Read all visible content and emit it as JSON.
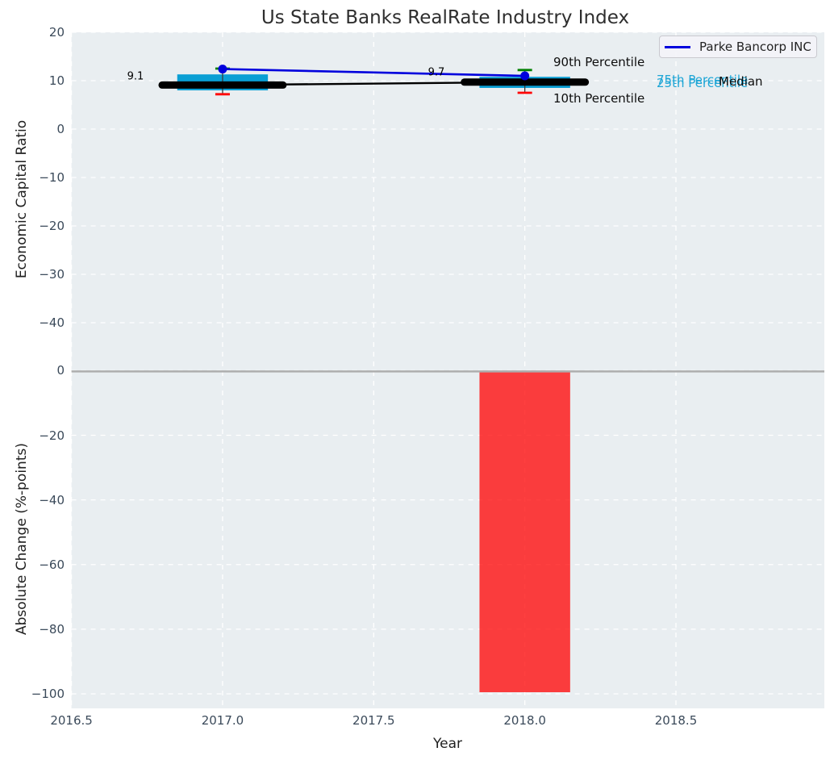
{
  "title": "Us State Banks RealRate Industry Index",
  "legend": {
    "label": "Parke Bancorp INC"
  },
  "annotations": {
    "p90": "90th Percentile",
    "p75": "75th Percentile",
    "median": "Median",
    "p25": "25th Percentile",
    "p10": "10th Percentile"
  },
  "colors": {
    "plot_bg": "#e9eef1",
    "grid": "#ffffff",
    "box": "#0a9fd4",
    "parke_line": "#0000dd",
    "median_line": "#000000",
    "cap_high": "#008000",
    "cap_low": "#ff0000",
    "whisker": "#3a3a3a",
    "bar": "#ff0000",
    "zero_line": "#aeaeae",
    "tick": "#3b4a5a",
    "cyan_label": "#1fa6d6"
  },
  "top_chart": {
    "ylabel": "Economic Capital Ratio",
    "ytick_labels": [
      "20",
      "10",
      "0",
      "−10",
      "−20",
      "−30",
      "−40"
    ],
    "yticks": [
      20,
      10,
      0,
      -10,
      -20,
      -30,
      -40
    ],
    "median_labels": [
      "9.1",
      "9.7"
    ]
  },
  "bottom_chart": {
    "ylabel": "Absolute Change (%-points)",
    "ytick_labels": [
      "0",
      "−20",
      "−40",
      "−60",
      "−80",
      "−100"
    ],
    "yticks": [
      0,
      -20,
      -40,
      -60,
      -80,
      -100
    ],
    "xlabel": "Year",
    "xtick_labels": [
      "2016.5",
      "2017.0",
      "2017.5",
      "2018.0",
      "2018.5"
    ],
    "xticks": [
      2016.5,
      2017.0,
      2017.5,
      2018.0,
      2018.5
    ]
  },
  "chart_data": [
    {
      "type": "box",
      "title": "Us State Banks RealRate Industry Index",
      "ylabel": "Economic Capital Ratio",
      "ylim": [
        -47,
        20
      ],
      "xlim": [
        2016.5,
        2019.0
      ],
      "x": [
        2017,
        2018
      ],
      "box_width": 0.3,
      "grid": true,
      "legend_position": "upper right",
      "series": [
        {
          "name": "Parke Bancorp INC",
          "values": [
            12.4,
            11.0
          ]
        },
        {
          "name": "Median",
          "values": [
            9.1,
            9.7
          ],
          "labels": [
            "9.1",
            "9.7"
          ]
        },
        {
          "name": "90th Percentile",
          "values": [
            12.5,
            12.2
          ]
        },
        {
          "name": "75th Percentile",
          "values": [
            11.3,
            10.8
          ]
        },
        {
          "name": "25th Percentile",
          "values": [
            8.0,
            8.5
          ]
        },
        {
          "name": "10th Percentile",
          "values": [
            7.2,
            7.5
          ]
        }
      ]
    },
    {
      "type": "bar",
      "ylabel": "Absolute Change (%-points)",
      "xlabel": "Year",
      "ylim": [
        4,
        -105
      ],
      "xlim": [
        2016.5,
        2019.0
      ],
      "x": [
        2018
      ],
      "values": [
        -99.5
      ],
      "bar_width": 0.3,
      "grid": true
    }
  ]
}
